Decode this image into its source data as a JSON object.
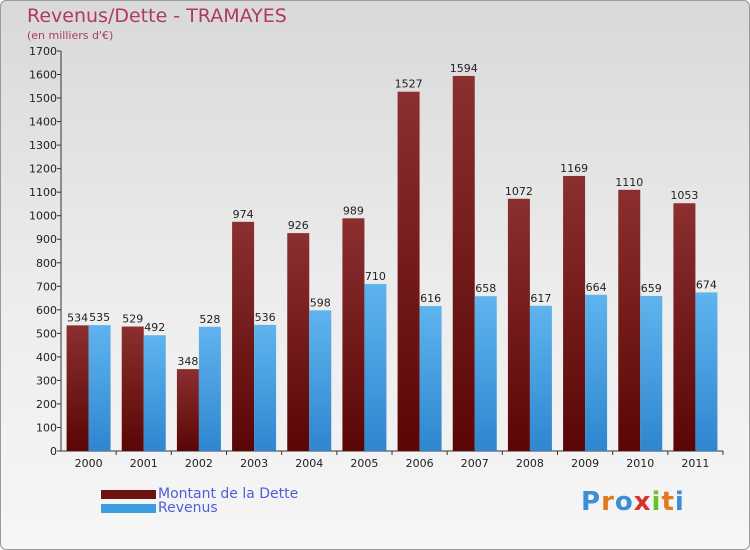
{
  "header": {
    "title": "Revenus/Dette - TRAMAYES",
    "subtitle": "(en milliers d'€)"
  },
  "chart_data": {
    "type": "bar",
    "title": "Revenus/Dette - TRAMAYES",
    "ylabel": "(en milliers d'€)",
    "xlabel": "",
    "ylim": [
      0,
      1700
    ],
    "ytick_step": 100,
    "grid": false,
    "legend_position": "bottom-left",
    "categories": [
      "2000",
      "2001",
      "2002",
      "2003",
      "2004",
      "2005",
      "2006",
      "2007",
      "2008",
      "2009",
      "2010",
      "2011"
    ],
    "series": [
      {
        "name": "Montant de la Dette",
        "values": [
          534,
          529,
          348,
          974,
          926,
          989,
          1527,
          1594,
          1072,
          1169,
          1110,
          1053
        ],
        "color": "#7a1c1c"
      },
      {
        "name": "Revenus",
        "values": [
          535,
          492,
          528,
          536,
          598,
          710,
          616,
          658,
          617,
          664,
          659,
          674
        ],
        "color": "#4aa3e0"
      }
    ]
  },
  "legend": {
    "items": [
      {
        "label": "Montant de la Dette",
        "color": "#6b1212"
      },
      {
        "label": "Revenus",
        "color": "#3e9ce0"
      }
    ]
  },
  "logo": {
    "letters": [
      "P",
      "r",
      "o",
      "x",
      "i",
      "t",
      "i"
    ],
    "colors": [
      "#3a8fd6",
      "#e07a1f",
      "#3a8fd6",
      "#d8322a",
      "#6cbf2e",
      "#e07a1f",
      "#3a8fd6"
    ]
  }
}
